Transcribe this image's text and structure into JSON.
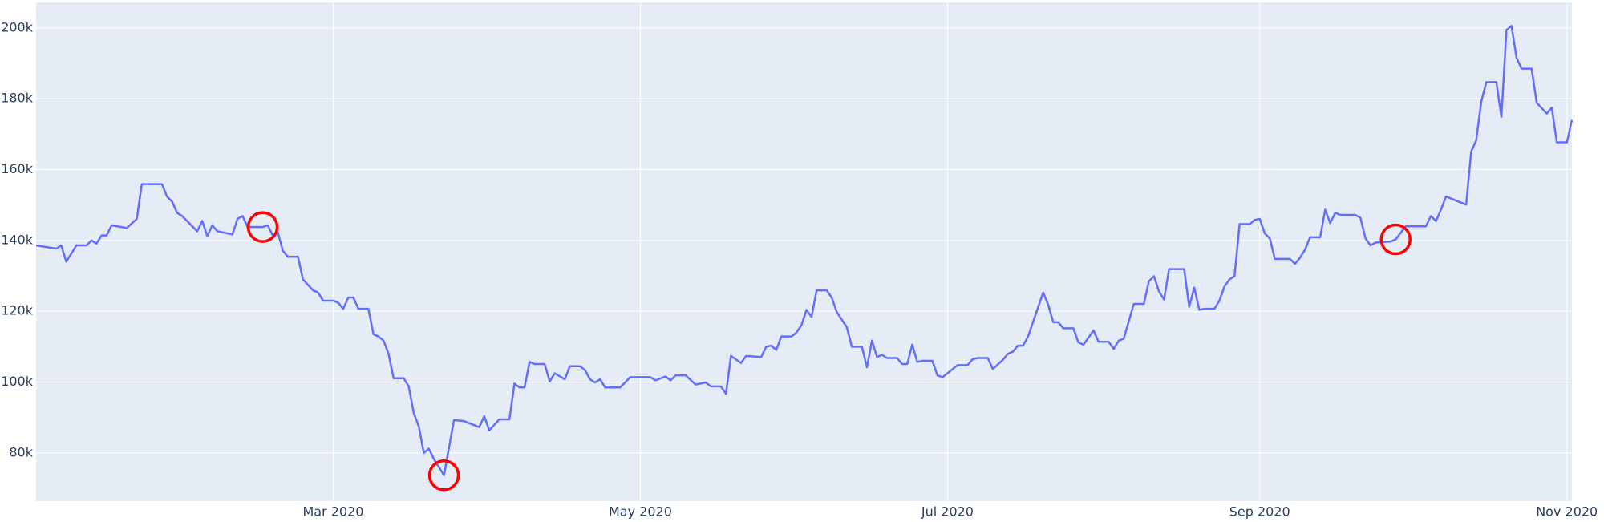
{
  "chart_data": {
    "type": "line",
    "x": [
      "2020-01-02",
      "2020-01-06",
      "2020-01-07",
      "2020-01-08",
      "2020-01-10",
      "2020-01-12",
      "2020-01-13",
      "2020-01-14",
      "2020-01-15",
      "2020-01-16",
      "2020-01-17",
      "2020-01-20",
      "2020-01-22",
      "2020-01-23",
      "2020-01-27",
      "2020-01-28",
      "2020-01-29",
      "2020-01-30",
      "2020-01-31",
      "2020-02-03",
      "2020-02-04",
      "2020-02-05",
      "2020-02-06",
      "2020-02-07",
      "2020-02-10",
      "2020-02-11",
      "2020-02-12",
      "2020-02-13",
      "2020-02-16",
      "2020-02-17",
      "2020-02-18",
      "2020-02-19",
      "2020-02-20",
      "2020-02-21",
      "2020-02-23",
      "2020-02-24",
      "2020-02-26",
      "2020-02-27",
      "2020-02-28",
      "2020-03-01",
      "2020-03-02",
      "2020-03-03",
      "2020-03-04",
      "2020-03-05",
      "2020-03-06",
      "2020-03-08",
      "2020-03-09",
      "2020-03-10",
      "2020-03-11",
      "2020-03-12",
      "2020-03-13",
      "2020-03-15",
      "2020-03-16",
      "2020-03-17",
      "2020-03-18",
      "2020-03-19",
      "2020-03-20",
      "2020-03-21",
      "2020-03-23",
      "2020-03-25",
      "2020-03-27",
      "2020-03-30",
      "2020-03-31",
      "2020-04-01",
      "2020-04-03",
      "2020-04-05",
      "2020-04-06",
      "2020-04-07",
      "2020-04-08",
      "2020-04-09",
      "2020-04-10",
      "2020-04-12",
      "2020-04-13",
      "2020-04-14",
      "2020-04-16",
      "2020-04-17",
      "2020-04-19",
      "2020-04-20",
      "2020-04-21",
      "2020-04-22",
      "2020-04-23",
      "2020-04-24",
      "2020-04-27",
      "2020-04-29",
      "2020-05-03",
      "2020-05-04",
      "2020-05-06",
      "2020-05-07",
      "2020-05-08",
      "2020-05-10",
      "2020-05-12",
      "2020-05-14",
      "2020-05-15",
      "2020-05-17",
      "2020-05-18",
      "2020-05-19",
      "2020-05-21",
      "2020-05-22",
      "2020-05-25",
      "2020-05-26",
      "2020-05-27",
      "2020-05-28",
      "2020-05-29",
      "2020-05-31",
      "2020-06-01",
      "2020-06-02",
      "2020-06-03",
      "2020-06-04",
      "2020-06-05",
      "2020-06-07",
      "2020-06-08",
      "2020-06-09",
      "2020-06-11",
      "2020-06-12",
      "2020-06-14",
      "2020-06-15",
      "2020-06-16",
      "2020-06-17",
      "2020-06-18",
      "2020-06-19",
      "2020-06-21",
      "2020-06-22",
      "2020-06-23",
      "2020-06-24",
      "2020-06-25",
      "2020-06-26",
      "2020-06-28",
      "2020-06-29",
      "2020-06-30",
      "2020-07-01",
      "2020-07-03",
      "2020-07-05",
      "2020-07-06",
      "2020-07-07",
      "2020-07-09",
      "2020-07-10",
      "2020-07-12",
      "2020-07-13",
      "2020-07-14",
      "2020-07-15",
      "2020-07-16",
      "2020-07-17",
      "2020-07-20",
      "2020-07-21",
      "2020-07-22",
      "2020-07-23",
      "2020-07-24",
      "2020-07-26",
      "2020-07-27",
      "2020-07-28",
      "2020-07-30",
      "2020-07-31",
      "2020-08-02",
      "2020-08-03",
      "2020-08-04",
      "2020-08-05",
      "2020-08-07",
      "2020-08-09",
      "2020-08-10",
      "2020-08-11",
      "2020-08-12",
      "2020-08-13",
      "2020-08-14",
      "2020-08-17",
      "2020-08-18",
      "2020-08-19",
      "2020-08-20",
      "2020-08-21",
      "2020-08-23",
      "2020-08-24",
      "2020-08-25",
      "2020-08-26",
      "2020-08-27",
      "2020-08-28",
      "2020-08-30",
      "2020-08-31",
      "2020-09-01",
      "2020-09-02",
      "2020-09-03",
      "2020-09-04",
      "2020-09-07",
      "2020-09-08",
      "2020-09-09",
      "2020-09-10",
      "2020-09-11",
      "2020-09-13",
      "2020-09-14",
      "2020-09-15",
      "2020-09-16",
      "2020-09-17",
      "2020-09-20",
      "2020-09-21",
      "2020-09-22",
      "2020-09-23",
      "2020-09-24",
      "2020-09-27",
      "2020-09-28",
      "2020-09-30",
      "2020-10-01",
      "2020-10-04",
      "2020-10-05",
      "2020-10-06",
      "2020-10-07",
      "2020-10-08",
      "2020-10-12",
      "2020-10-13",
      "2020-10-14",
      "2020-10-15",
      "2020-10-16",
      "2020-10-18",
      "2020-10-19",
      "2020-10-20",
      "2020-10-21",
      "2020-10-22",
      "2020-10-23",
      "2020-10-25",
      "2020-10-26",
      "2020-10-28",
      "2020-10-29",
      "2020-10-30",
      "2020-11-01",
      "2020-11-02"
    ],
    "series": [
      {
        "color": "#636efa",
        "values": [
          138600,
          137700,
          138600,
          134000,
          138600,
          138600,
          140000,
          139100,
          141400,
          141400,
          144300,
          143500,
          146100,
          155900,
          155900,
          152400,
          151000,
          147800,
          146900,
          142600,
          145500,
          141200,
          144300,
          142600,
          141700,
          146100,
          146900,
          143800,
          143800,
          144300,
          141400,
          142300,
          137100,
          135400,
          135400,
          129000,
          125900,
          125300,
          123000,
          123000,
          122400,
          120700,
          123900,
          123900,
          120700,
          120700,
          113500,
          112900,
          111700,
          108000,
          101100,
          101100,
          98800,
          91300,
          87500,
          80000,
          81200,
          78300,
          73700,
          89300,
          89000,
          87300,
          90400,
          86400,
          89500,
          89500,
          99600,
          98500,
          98500,
          105700,
          105100,
          105100,
          100200,
          102500,
          100800,
          104500,
          104500,
          103400,
          100800,
          99900,
          100800,
          98500,
          98500,
          101400,
          101400,
          100500,
          101600,
          100500,
          101900,
          101900,
          99300,
          99900,
          98800,
          98800,
          96700,
          107400,
          105400,
          107400,
          107100,
          110000,
          110300,
          109100,
          112900,
          112900,
          114000,
          116100,
          120400,
          118400,
          125900,
          125900,
          123900,
          119800,
          115500,
          110000,
          110000,
          104200,
          111700,
          107100,
          107700,
          106800,
          106800,
          105100,
          105100,
          110600,
          105700,
          106000,
          106000,
          101900,
          101400,
          102500,
          104800,
          104800,
          106500,
          106800,
          106800,
          103700,
          106300,
          108000,
          108600,
          110300,
          110300,
          112900,
          125300,
          121800,
          116900,
          116900,
          115200,
          115200,
          111200,
          110600,
          114600,
          111400,
          111400,
          109400,
          111700,
          112300,
          122100,
          122100,
          128500,
          129900,
          125600,
          123300,
          131900,
          131900,
          121300,
          126700,
          120400,
          120700,
          120700,
          123000,
          127000,
          129000,
          129900,
          144600,
          144600,
          145800,
          146100,
          142000,
          140600,
          134800,
          134800,
          133400,
          135100,
          137400,
          140900,
          140900,
          148700,
          144900,
          147800,
          147200,
          147200,
          146400,
          140600,
          138600,
          139400,
          139700,
          140300,
          144000,
          144000,
          144000,
          146900,
          145500,
          148700,
          152400,
          150100,
          165100,
          168300,
          179200,
          184700,
          184700,
          174900,
          199400,
          200600,
          191600,
          188500,
          188500,
          178900,
          175800,
          177500,
          167700,
          167700,
          174000
        ]
      }
    ],
    "markers": {
      "color": "#ff0000",
      "x": [
        "2020-02-16",
        "2020-03-23",
        "2020-09-28"
      ],
      "values": [
        143800,
        73700,
        140300
      ]
    },
    "xlim": [
      "2020-01-02",
      "2020-11-02"
    ],
    "xticks": [
      {
        "value": "2020-03-01",
        "label": "Mar 2020"
      },
      {
        "value": "2020-05-01",
        "label": "May 2020"
      },
      {
        "value": "2020-07-01",
        "label": "Jul 2020"
      },
      {
        "value": "2020-09-01",
        "label": "Sep 2020"
      },
      {
        "value": "2020-11-01",
        "label": "Nov 2020"
      }
    ],
    "ylim": [
      66400,
      207200
    ],
    "yticks": [
      {
        "value": 80000,
        "label": "80k"
      },
      {
        "value": 100000,
        "label": "100k"
      },
      {
        "value": 120000,
        "label": "120k"
      },
      {
        "value": 140000,
        "label": "140k"
      },
      {
        "value": 160000,
        "label": "160k"
      },
      {
        "value": 180000,
        "label": "180k"
      },
      {
        "value": 200000,
        "label": "200k"
      }
    ],
    "grid": true,
    "background": "#e5ecf6"
  }
}
